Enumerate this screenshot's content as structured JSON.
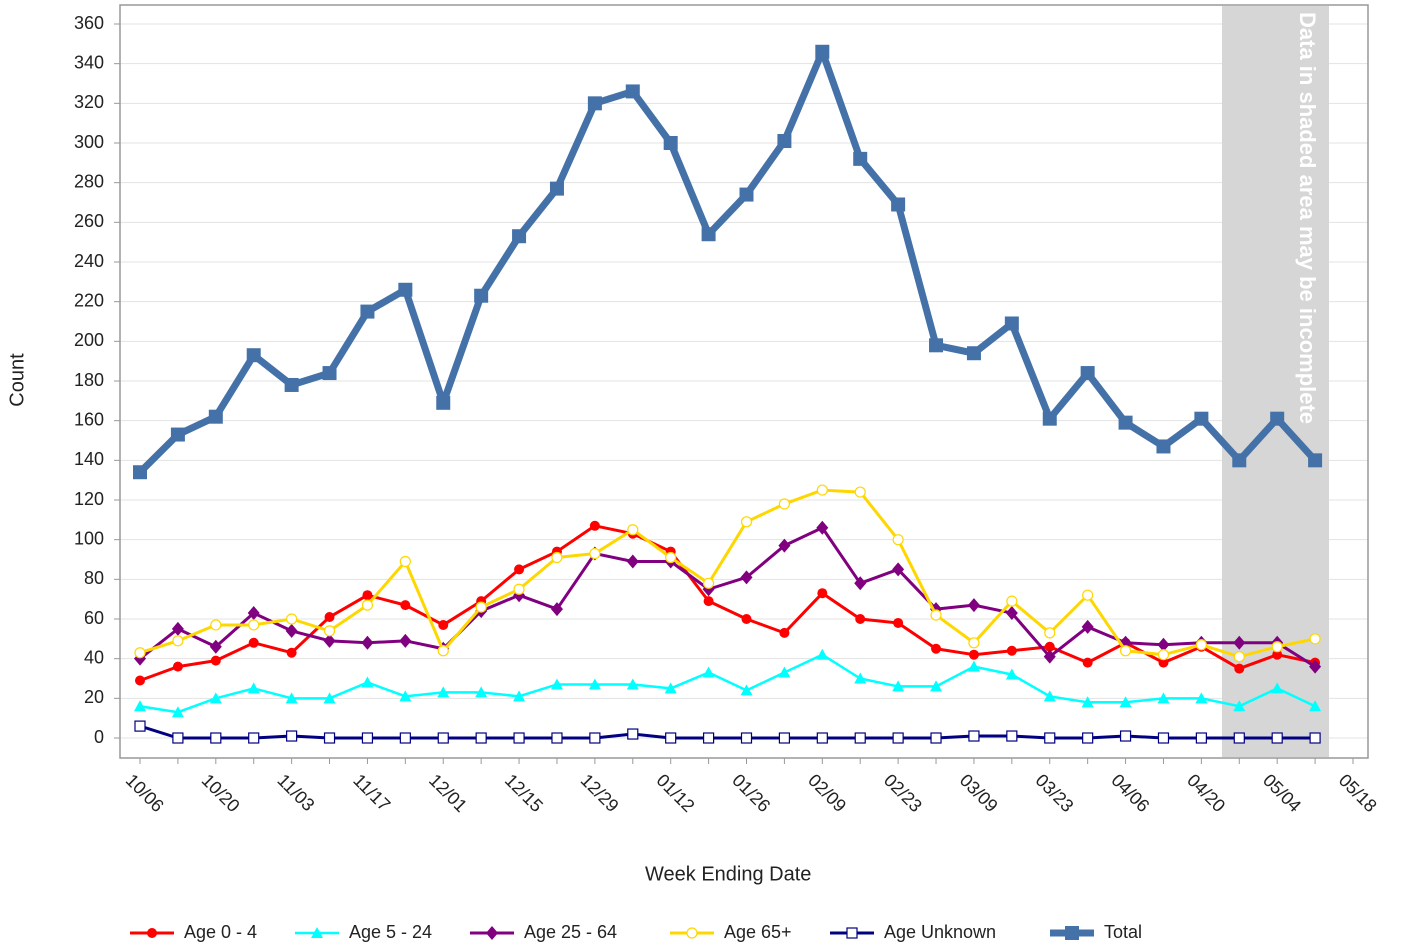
{
  "chart_data": {
    "type": "line",
    "x_label": "Week Ending Date",
    "y_label": "Count",
    "annotation": "Data in shaded area may be incomplete",
    "categories": [
      "10/06",
      null,
      "10/20",
      null,
      "11/03",
      null,
      "11/17",
      null,
      "12/01",
      null,
      "12/15",
      null,
      "12/29",
      null,
      "01/12",
      null,
      "01/26",
      null,
      "02/09",
      null,
      "02/23",
      null,
      "03/09",
      null,
      "03/23",
      null,
      "04/06",
      null,
      "04/20",
      null,
      "05/04",
      null,
      "05/18"
    ],
    "ylim": [
      0,
      360
    ],
    "yticks": [
      0,
      20,
      40,
      60,
      80,
      100,
      120,
      140,
      160,
      180,
      200,
      220,
      240,
      260,
      280,
      300,
      320,
      340,
      360
    ],
    "grid": true,
    "legend": "bottom",
    "series": [
      {
        "name": "Age 0 - 4",
        "color": "#ff0000",
        "marker": "circle",
        "values": [
          29,
          36,
          39,
          48,
          43,
          61,
          72,
          67,
          57,
          69,
          85,
          94,
          107,
          103,
          94,
          69,
          60,
          53,
          73,
          60,
          58,
          45,
          42,
          44,
          46,
          38,
          48,
          38,
          46,
          35,
          42,
          38,
          null
        ]
      },
      {
        "name": "Age 5 - 24",
        "color": "#00ffff",
        "marker": "triangle",
        "values": [
          16,
          13,
          20,
          25,
          20,
          20,
          28,
          21,
          23,
          23,
          21,
          27,
          27,
          27,
          25,
          33,
          24,
          33,
          42,
          30,
          26,
          26,
          36,
          32,
          21,
          18,
          18,
          20,
          20,
          16,
          25,
          16,
          null
        ]
      },
      {
        "name": "Age 25 - 64",
        "color": "#800080",
        "marker": "diamond",
        "values": [
          40,
          55,
          46,
          63,
          54,
          49,
          48,
          49,
          45,
          64,
          72,
          65,
          93,
          89,
          89,
          75,
          81,
          97,
          106,
          78,
          85,
          65,
          67,
          63,
          41,
          56,
          48,
          47,
          48,
          48,
          48,
          36,
          null
        ]
      },
      {
        "name": "Age 65+",
        "color": "#ffd700",
        "marker": "circle-open",
        "values": [
          43,
          49,
          57,
          57,
          60,
          54,
          67,
          89,
          44,
          66,
          75,
          91,
          93,
          105,
          91,
          78,
          109,
          118,
          125,
          124,
          100,
          62,
          48,
          69,
          53,
          72,
          44,
          42,
          47,
          41,
          46,
          50,
          null
        ]
      },
      {
        "name": "Age Unknown",
        "color": "#000080",
        "marker": "square-open",
        "values": [
          6,
          0,
          0,
          0,
          1,
          0,
          0,
          0,
          0,
          0,
          0,
          0,
          0,
          2,
          0,
          0,
          0,
          0,
          0,
          0,
          0,
          0,
          1,
          1,
          0,
          0,
          1,
          0,
          0,
          0,
          0,
          0,
          null
        ]
      },
      {
        "name": "Total",
        "color": "#4472a8",
        "marker": "square",
        "values": [
          134,
          153,
          162,
          193,
          178,
          184,
          215,
          226,
          169,
          223,
          253,
          277,
          320,
          326,
          300,
          254,
          274,
          301,
          346,
          292,
          269,
          198,
          194,
          209,
          161,
          184,
          159,
          147,
          161,
          140,
          161,
          140,
          null
        ]
      }
    ]
  }
}
